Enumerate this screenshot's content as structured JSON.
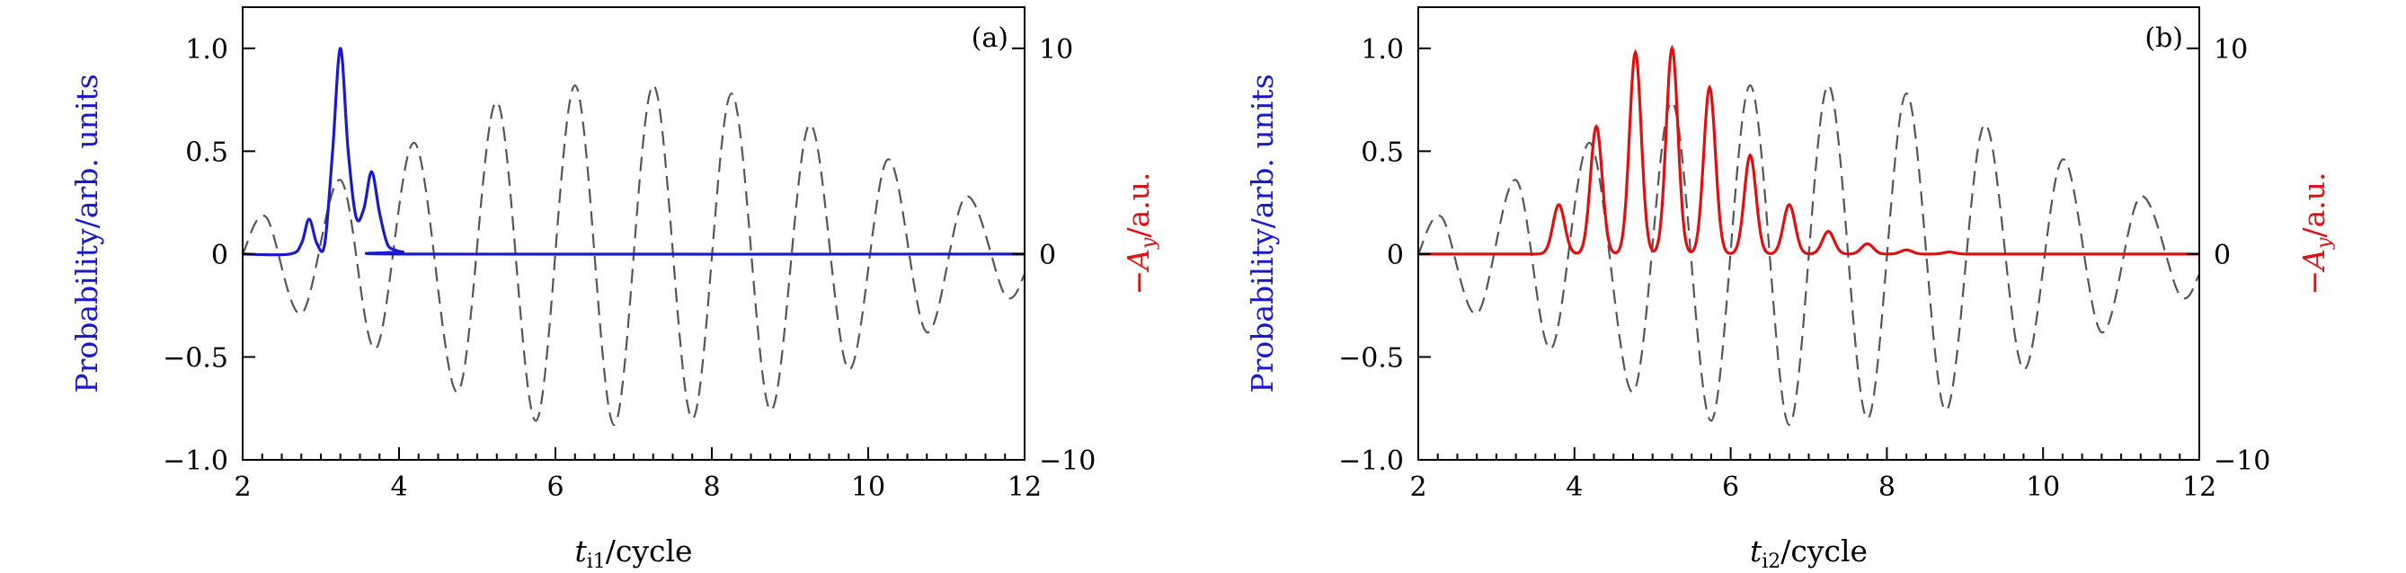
{
  "chart_data": [
    {
      "type": "line",
      "panel_label": "(a)",
      "xlabel": "t_i1/cycle",
      "xlabel_sub": "i1",
      "ylabel": "Probability/arb. units",
      "ylabel_right": "-A_y/a.u.",
      "xlim": [
        2,
        12
      ],
      "ylim": [
        -1.0,
        1.2
      ],
      "ylim_right": [
        -10,
        12
      ],
      "x_ticks": [
        "2",
        "4",
        "6",
        "8",
        "10",
        "12"
      ],
      "y_ticks": [
        "-1.0",
        "-0.5",
        "0",
        "0.5",
        "1.0"
      ],
      "y_ticks_right": [
        "-10",
        "0",
        "10"
      ],
      "grid": false,
      "colors": {
        "probability": "#1a1acc",
        "field": "#555555",
        "ylabel": "#1a1acc",
        "ylabel_right": "#dd1111"
      },
      "series": [
        {
          "axis": "left",
          "style": "solid",
          "x": [
            2.0,
            2.6,
            2.75,
            2.85,
            2.95,
            3.05,
            3.15,
            3.25,
            3.35,
            3.45,
            3.55,
            3.65,
            3.75,
            3.85,
            3.95,
            4.05,
            4.2,
            12.0
          ],
          "y": [
            0,
            0,
            0.05,
            0.17,
            0.05,
            0.05,
            0.5,
            1.0,
            0.5,
            0.18,
            0.22,
            0.4,
            0.2,
            0.05,
            0.02,
            0.01,
            0,
            0
          ]
        },
        {
          "axis": "right",
          "style": "dashed",
          "x": [
            2.0,
            2.3,
            2.75,
            3.25,
            3.7,
            4.2,
            4.75,
            5.25,
            5.75,
            6.25,
            6.75,
            7.25,
            7.75,
            8.25,
            8.75,
            9.25,
            9.75,
            10.25,
            10.75,
            11.25,
            11.75,
            12.0
          ],
          "y": [
            0,
            1.8,
            -2.9,
            3.6,
            -4.6,
            5.4,
            -6.7,
            7.4,
            -8.1,
            8.2,
            -8.3,
            8.2,
            -8.0,
            7.8,
            -7.6,
            6.3,
            -5.6,
            4.6,
            -3.8,
            2.8,
            -2.0,
            -1.0
          ]
        }
      ]
    },
    {
      "type": "line",
      "panel_label": "(b)",
      "xlabel": "t_i2/cycle",
      "xlabel_sub": "i2",
      "ylabel": "Probability/arb. units",
      "ylabel_right": "-A_y/a.u.",
      "xlim": [
        2,
        12
      ],
      "ylim": [
        -1.0,
        1.2
      ],
      "ylim_right": [
        -10,
        12
      ],
      "x_ticks": [
        "2",
        "4",
        "6",
        "8",
        "10",
        "12"
      ],
      "y_ticks": [
        "-1.0",
        "-0.5",
        "0",
        "0.5",
        "1.0"
      ],
      "y_ticks_right": [
        "-10",
        "0",
        "10"
      ],
      "grid": false,
      "colors": {
        "probability": "#e01010",
        "field": "#555555",
        "ylabel": "#1a1acc",
        "ylabel_right": "#dd1111"
      },
      "series": [
        {
          "axis": "left",
          "style": "solid",
          "peaks": [
            [
              3.8,
              0.24
            ],
            [
              4.28,
              0.62
            ],
            [
              4.78,
              0.98
            ],
            [
              5.25,
              1.0
            ],
            [
              5.73,
              0.81
            ],
            [
              6.25,
              0.48
            ],
            [
              6.75,
              0.24
            ],
            [
              7.25,
              0.11
            ],
            [
              7.75,
              0.05
            ],
            [
              8.25,
              0.02
            ],
            [
              8.8,
              0.01
            ]
          ],
          "baseline": 0
        },
        {
          "axis": "right",
          "style": "dashed",
          "x": [
            2.0,
            2.3,
            2.75,
            3.25,
            3.7,
            4.2,
            4.75,
            5.25,
            5.75,
            6.25,
            6.75,
            7.25,
            7.75,
            8.25,
            8.75,
            9.25,
            9.75,
            10.25,
            10.75,
            11.25,
            11.75,
            12.0
          ],
          "y": [
            0,
            1.8,
            -2.9,
            3.6,
            -4.6,
            5.4,
            -6.7,
            7.4,
            -8.1,
            8.2,
            -8.3,
            8.2,
            -8.0,
            7.8,
            -7.6,
            6.3,
            -5.6,
            4.6,
            -3.8,
            2.8,
            -2.0,
            -1.0
          ]
        }
      ]
    }
  ]
}
